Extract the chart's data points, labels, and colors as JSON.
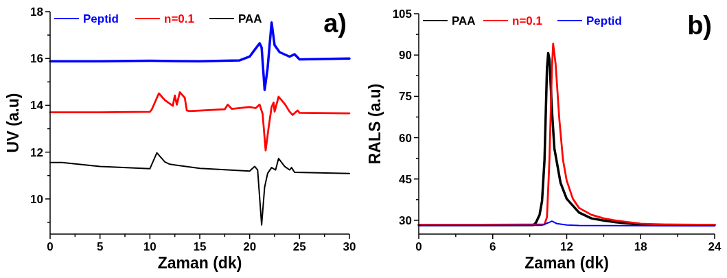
{
  "chart_data": [
    {
      "type": "line",
      "xlabel": "Zaman (dk)",
      "ylabel": "UV (a.u)",
      "annotations": [
        "a)"
      ],
      "xlim": [
        0,
        30
      ],
      "ylim": [
        8.5,
        18
      ],
      "xticks": [
        0,
        {
          "value": 2.5,
          "label": null
        },
        5,
        {
          "value": 7.5,
          "label": null
        },
        10,
        {
          "value": 12.5,
          "label": null
        },
        15,
        {
          "value": 17.5,
          "label": null
        },
        20,
        {
          "value": 22.5,
          "label": null
        },
        25,
        {
          "value": 27.5,
          "label": null
        },
        30
      ],
      "yticks": [
        {
          "value": 9,
          "label": null
        },
        10,
        {
          "value": 11,
          "label": null
        },
        12,
        {
          "value": 13,
          "label": null
        },
        14,
        {
          "value": 15,
          "label": null
        },
        16,
        {
          "value": 17,
          "label": null
        },
        18
      ],
      "legend": "top left",
      "grid": false,
      "marker": "none",
      "line_style": "solid",
      "series": [
        {
          "name": "Peptid",
          "color": "#0000ff",
          "x": [
            0,
            5,
            10,
            15,
            19,
            19.5,
            20,
            20.5,
            21,
            21.2,
            21.5,
            21.8,
            22,
            22.2,
            22.5,
            23,
            24,
            24.5,
            25,
            30
          ],
          "values": [
            15.88,
            15.88,
            15.9,
            15.88,
            15.92,
            16.0,
            16.08,
            16.37,
            16.65,
            16.47,
            14.66,
            15.59,
            16.57,
            17.54,
            16.57,
            16.27,
            16.08,
            16.18,
            15.96,
            16.0
          ]
        },
        {
          "name": "n=0.1",
          "color": "#ff0000",
          "x": [
            0,
            5,
            10,
            10.2,
            10.9,
            11.5,
            12.3,
            12.5,
            12.7,
            13,
            13.5,
            13.7,
            14,
            17.5,
            17.8,
            18.2,
            20,
            20.6,
            21,
            21.3,
            21.6,
            21.9,
            22.2,
            22.4,
            22.5,
            22.9,
            23.5,
            24,
            24.3,
            24.8,
            25,
            30
          ],
          "values": [
            13.7,
            13.7,
            13.72,
            13.83,
            14.51,
            14.22,
            13.98,
            14.42,
            14.03,
            14.56,
            14.32,
            13.78,
            13.75,
            13.83,
            14.03,
            13.85,
            13.93,
            13.88,
            14.03,
            13.63,
            12.07,
            13.05,
            13.93,
            14.12,
            13.73,
            14.37,
            14.07,
            13.73,
            13.59,
            13.78,
            13.68,
            13.66
          ]
        },
        {
          "name": "PAA",
          "color": "#000000",
          "x": [
            0,
            1.2,
            5,
            10,
            10.7,
            11.5,
            12,
            15,
            20,
            20.5,
            20.8,
            21.2,
            21.5,
            21.8,
            22.2,
            22.6,
            22.9,
            23.5,
            24,
            24.2,
            24.5,
            30
          ],
          "values": [
            11.56,
            11.56,
            11.39,
            11.29,
            11.97,
            11.58,
            11.48,
            11.31,
            11.19,
            11.39,
            11.24,
            8.89,
            10.5,
            11.09,
            11.34,
            11.24,
            11.73,
            11.39,
            11.24,
            11.34,
            11.14,
            11.09
          ]
        }
      ]
    },
    {
      "type": "line",
      "xlabel": "Zaman (dk)",
      "ylabel": "RALS (a.u)",
      "annotations": [
        "b)"
      ],
      "xlim": [
        0,
        24
      ],
      "ylim": [
        25,
        105
      ],
      "xticks": [
        0,
        {
          "value": 3,
          "label": null
        },
        6,
        {
          "value": 9,
          "label": null
        },
        12,
        {
          "value": 15,
          "label": null
        },
        18,
        {
          "value": 21,
          "label": null
        },
        24
      ],
      "yticks": [
        30,
        {
          "value": 37.5,
          "label": null
        },
        45,
        {
          "value": 52.5,
          "label": null
        },
        60,
        {
          "value": 67.5,
          "label": null
        },
        75,
        {
          "value": 82.5,
          "label": null
        },
        90,
        {
          "value": 97.5,
          "label": null
        },
        105
      ],
      "legend": "top left",
      "grid": false,
      "marker": "none",
      "line_style": "solid",
      "series": [
        {
          "name": "PAA",
          "color": "#000000",
          "x": [
            0,
            5,
            9.3,
            9.5,
            9.8,
            10,
            10.2,
            10.4,
            10.5,
            10.6,
            10.8,
            11,
            11.5,
            12,
            13,
            14,
            15,
            16,
            18,
            24
          ],
          "values": [
            28.3,
            28.3,
            28.3,
            29.1,
            32,
            37,
            51.9,
            85.1,
            90.7,
            88.4,
            70.1,
            56.1,
            43.6,
            37.8,
            32.8,
            30.7,
            29.9,
            29.3,
            28.4,
            28.3
          ]
        },
        {
          "name": "n=0.1",
          "color": "#ff0000",
          "x": [
            0,
            5,
            10.2,
            10.4,
            10.6,
            10.8,
            10.9,
            11.1,
            11.4,
            11.7,
            12,
            12.5,
            13,
            14,
            15,
            16,
            18,
            20,
            24
          ],
          "values": [
            28.4,
            28.4,
            28.5,
            31.2,
            51.9,
            85.1,
            94.1,
            86.8,
            66.8,
            51.9,
            44.4,
            37.8,
            34.5,
            32,
            30.7,
            29.9,
            28.8,
            28.4,
            28.4
          ]
        },
        {
          "name": "Peptid",
          "color": "#0000ff",
          "x": [
            0,
            5,
            10,
            10.5,
            10.8,
            11.2,
            12,
            13,
            24
          ],
          "values": [
            28.1,
            28.1,
            28.2,
            29.1,
            29.7,
            28.8,
            28.3,
            28.1,
            28.0
          ]
        }
      ]
    }
  ]
}
